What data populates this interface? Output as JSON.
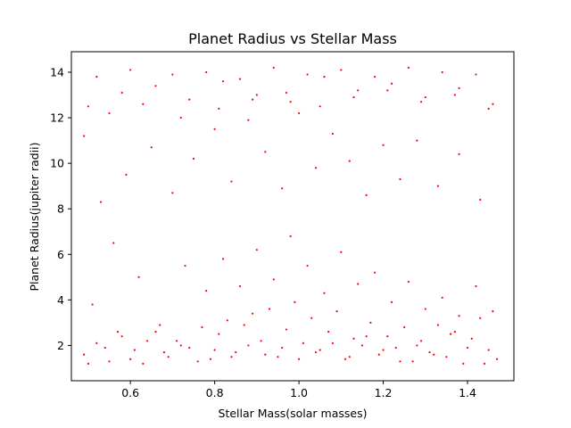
{
  "chart_data": {
    "type": "scatter",
    "title": "Planet Radius vs Stellar Mass",
    "xlabel": "Stellar Mass(solar masses)",
    "ylabel": "Planet Radius(jupiter radii)",
    "xlim": [
      0.46,
      1.51
    ],
    "ylim": [
      0.45,
      14.9
    ],
    "xticks": [
      0.6,
      0.8,
      1.0,
      1.2,
      1.4
    ],
    "yticks": [
      2,
      4,
      6,
      8,
      10,
      12,
      14
    ],
    "xtick_labels": [
      "0.6",
      "0.8",
      "1.0",
      "1.2",
      "1.4"
    ],
    "ytick_labels": [
      "2",
      "4",
      "6",
      "8",
      "10",
      "12",
      "14"
    ],
    "grid": false,
    "legend": "none",
    "marker_color": "#ff0000",
    "series": [
      {
        "values_note_free": true,
        "x": [
          0.49,
          0.52,
          0.55,
          0.58,
          0.61,
          0.63,
          0.66,
          0.69,
          0.71,
          0.74,
          0.77,
          0.79,
          0.81,
          0.83,
          0.85,
          0.87,
          0.89,
          0.91,
          0.93,
          0.95,
          0.97,
          0.99,
          1.01,
          1.03,
          1.05,
          1.07,
          1.09,
          1.11,
          1.13,
          1.15,
          1.17,
          1.19,
          1.21,
          1.23,
          1.25,
          1.27,
          1.29,
          1.31,
          1.33,
          1.35,
          1.37,
          1.39,
          1.41,
          1.43,
          1.45,
          1.47,
          0.5,
          0.54,
          0.57,
          0.6,
          0.64,
          0.68,
          0.72,
          0.76,
          0.8,
          0.84,
          0.88,
          0.92,
          0.96,
          1.0,
          1.04,
          1.08,
          1.12,
          1.16,
          1.2,
          1.24,
          1.28,
          1.32,
          1.36,
          1.4,
          1.44,
          0.51,
          0.56,
          0.62,
          0.67,
          0.73,
          0.78,
          0.82,
          0.86,
          0.9,
          0.94,
          0.98,
          1.02,
          1.06,
          1.1,
          1.14,
          1.18,
          1.22,
          1.26,
          1.3,
          1.34,
          1.38,
          1.42,
          1.46,
          0.53,
          0.59,
          0.65,
          0.7,
          0.75,
          0.8,
          0.84,
          0.88,
          0.92,
          0.96,
          1.0,
          1.04,
          1.08,
          1.12,
          1.16,
          1.2,
          1.24,
          1.28,
          1.33,
          1.38,
          1.43,
          0.5,
          0.58,
          0.66,
          0.74,
          0.82,
          0.9,
          0.98,
          1.06,
          1.14,
          1.22,
          1.3,
          1.38,
          1.46,
          0.52,
          0.6,
          0.7,
          0.78,
          0.86,
          0.94,
          1.02,
          1.1,
          1.18,
          1.26,
          1.34,
          1.42,
          0.49,
          0.55,
          0.63,
          0.72,
          0.81,
          0.89,
          0.97,
          1.05,
          1.13,
          1.21,
          1.29,
          1.37,
          1.45
        ],
        "y": [
          1.6,
          2.1,
          1.3,
          2.4,
          1.8,
          1.2,
          2.6,
          1.5,
          2.2,
          1.9,
          2.8,
          1.4,
          2.5,
          3.1,
          1.7,
          2.9,
          3.4,
          2.2,
          3.6,
          1.5,
          2.7,
          3.9,
          2.1,
          3.2,
          1.8,
          2.6,
          3.5,
          1.4,
          2.3,
          2.0,
          3.0,
          1.6,
          2.4,
          1.9,
          2.8,
          1.3,
          2.2,
          1.7,
          2.9,
          1.5,
          2.6,
          1.2,
          2.3,
          3.2,
          1.8,
          1.4,
          1.2,
          1.9,
          2.6,
          1.4,
          2.2,
          1.7,
          2.0,
          1.3,
          1.8,
          1.5,
          2.0,
          1.6,
          1.9,
          1.4,
          1.7,
          2.1,
          1.5,
          2.4,
          1.8,
          1.3,
          2.0,
          1.6,
          2.5,
          1.9,
          1.2,
          3.8,
          6.5,
          5.0,
          2.9,
          5.5,
          4.4,
          5.8,
          4.6,
          6.2,
          4.9,
          6.8,
          5.5,
          4.3,
          6.1,
          4.7,
          5.2,
          3.9,
          4.8,
          3.6,
          4.1,
          3.3,
          4.6,
          3.5,
          8.3,
          9.5,
          10.7,
          8.7,
          10.2,
          11.5,
          9.2,
          11.9,
          10.5,
          8.9,
          12.2,
          9.8,
          11.3,
          10.1,
          8.6,
          10.8,
          9.3,
          11.0,
          9.0,
          10.4,
          8.4,
          12.5,
          13.1,
          13.4,
          12.8,
          13.6,
          13.0,
          12.7,
          13.8,
          13.2,
          13.5,
          12.9,
          13.3,
          12.6,
          13.8,
          14.1,
          13.9,
          14.0,
          13.7,
          14.2,
          13.9,
          14.1,
          13.8,
          14.2,
          14.0,
          13.9,
          11.2,
          12.2,
          12.6,
          12.0,
          12.4,
          12.8,
          13.1,
          12.5,
          12.9,
          13.2,
          12.7,
          13.0,
          12.4
        ]
      }
    ]
  }
}
